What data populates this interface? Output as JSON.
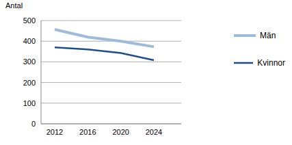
{
  "chart_data": {
    "type": "line",
    "ylabel": "Antal",
    "categories": [
      "2012",
      "2016",
      "2020",
      "2024"
    ],
    "series": [
      {
        "name": "Män",
        "color": "#9dbbdb",
        "values": [
          457,
          420,
          400,
          373
        ]
      },
      {
        "name": "Kvinnor",
        "color": "#1f4e8c",
        "values": [
          370,
          360,
          343,
          308
        ]
      }
    ],
    "ylim": [
      0,
      500
    ],
    "yticks": [
      0,
      100,
      200,
      300,
      400,
      500
    ],
    "grid": true,
    "legend": "right"
  }
}
